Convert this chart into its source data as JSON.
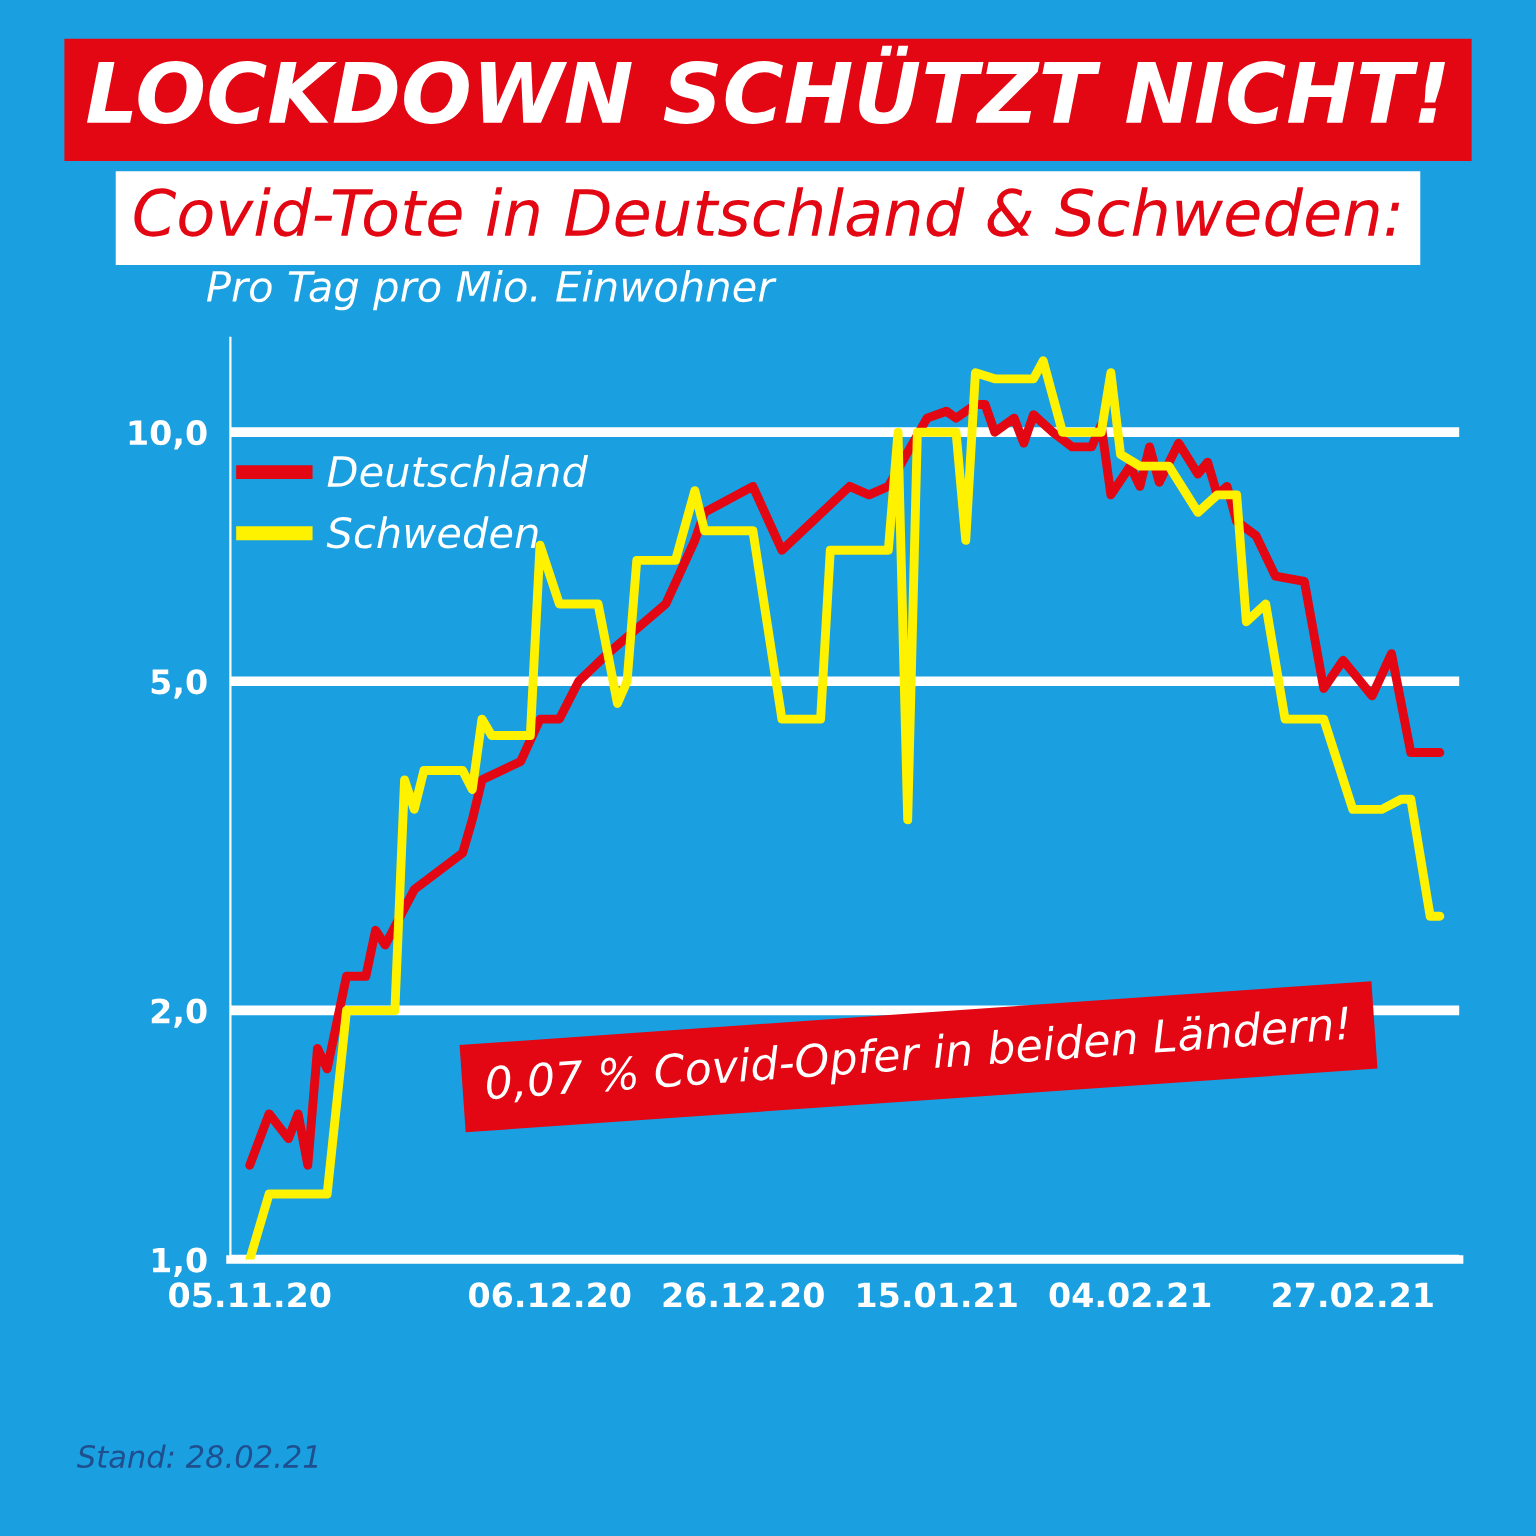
{
  "chart_data": {
    "type": "line",
    "title": "LOCKDOWN SCHÜTZT NICHT!",
    "subtitle": "Covid-Tote in Deutschland & Schweden:",
    "ylabel": "Pro Tag pro Mio. Einwohner",
    "annotations": [
      "0,07 % Covid-Opfer in beiden Ländern!",
      "Stand: 28.02.21"
    ],
    "xlim": [
      "2020-11-03",
      "2021-03-10"
    ],
    "xticks": [
      {
        "value": "2020-11-05",
        "label": "05.11.20"
      },
      {
        "value": "2020-12-06",
        "label": "06.12.20"
      },
      {
        "value": "2020-12-26",
        "label": "26.12.20"
      },
      {
        "value": "2021-01-15",
        "label": "15.01.21"
      },
      {
        "value": "2021-02-04",
        "label": "04.02.21"
      },
      {
        "value": "2021-02-27",
        "label": "27.02.21"
      }
    ],
    "ylim": [
      1,
      13
    ],
    "yticks": [
      {
        "value": 1,
        "label": "1,0"
      },
      {
        "value": 2,
        "label": "2,0"
      },
      {
        "value": 5,
        "label": "5,0"
      },
      {
        "value": 10,
        "label": "10,0"
      }
    ],
    "log": true,
    "grid": "y",
    "legend": "top left",
    "marker": "none",
    "line_style": "solid",
    "series": [
      {
        "name": "Deutschland",
        "color": "#e30613",
        "x": [
          "2020-11-05",
          "2020-11-07",
          "2020-11-09",
          "2020-11-10",
          "2020-11-11",
          "2020-11-12",
          "2020-11-13",
          "2020-11-15",
          "2020-11-17",
          "2020-11-18",
          "2020-11-19",
          "2020-11-22",
          "2020-11-27",
          "2020-11-28",
          "2020-11-29",
          "2020-12-03",
          "2020-12-05",
          "2020-12-07",
          "2020-12-09",
          "2020-12-12",
          "2020-12-18",
          "2020-12-21",
          "2020-12-22",
          "2020-12-27",
          "2020-12-30",
          "2021-01-06",
          "2021-01-08",
          "2021-01-10",
          "2021-01-14",
          "2021-01-16",
          "2021-01-17",
          "2021-01-19",
          "2021-01-20",
          "2021-01-21",
          "2021-01-23",
          "2021-01-24",
          "2021-01-25",
          "2021-01-27",
          "2021-01-29",
          "2021-01-31",
          "2021-02-01",
          "2021-02-02",
          "2021-02-04",
          "2021-02-05",
          "2021-02-06",
          "2021-02-07",
          "2021-02-09",
          "2021-02-11",
          "2021-02-12",
          "2021-02-13",
          "2021-02-14",
          "2021-02-15",
          "2021-02-17",
          "2021-02-19",
          "2021-02-22",
          "2021-02-24",
          "2021-02-26",
          "2021-03-01",
          "2021-03-03",
          "2021-03-05",
          "2021-03-08"
        ],
        "values": [
          1.3,
          1.5,
          1.4,
          1.5,
          1.3,
          1.8,
          1.7,
          2.2,
          2.2,
          2.5,
          2.4,
          2.8,
          3.1,
          3.4,
          3.8,
          4.0,
          4.5,
          4.5,
          5.0,
          5.4,
          6.2,
          7.4,
          8.0,
          8.6,
          7.2,
          8.6,
          8.4,
          8.6,
          10.4,
          10.6,
          10.4,
          10.8,
          10.8,
          10.0,
          10.4,
          9.7,
          10.5,
          10.0,
          9.6,
          9.6,
          10.2,
          8.4,
          9.1,
          8.6,
          9.6,
          8.7,
          9.7,
          8.9,
          9.2,
          8.4,
          8.6,
          7.8,
          7.5,
          6.7,
          6.6,
          4.9,
          5.3,
          4.8,
          5.4,
          4.1,
          4.1
        ]
      },
      {
        "name": "Schweden",
        "color": "#fff200",
        "x": [
          "2020-11-05",
          "2020-11-07",
          "2020-11-13",
          "2020-11-15",
          "2020-11-20",
          "2020-11-21",
          "2020-11-22",
          "2020-11-23",
          "2020-11-27",
          "2020-11-28",
          "2020-11-29",
          "2020-11-30",
          "2020-12-04",
          "2020-12-05",
          "2020-12-07",
          "2020-12-11",
          "2020-12-13",
          "2020-12-14",
          "2020-12-15",
          "2020-12-19",
          "2020-12-21",
          "2020-12-22",
          "2020-12-27",
          "2020-12-30",
          "2021-01-03",
          "2021-01-04",
          "2021-01-10",
          "2021-01-11",
          "2021-01-12",
          "2021-01-13",
          "2021-01-17",
          "2021-01-18",
          "2021-01-19",
          "2021-01-21",
          "2021-01-25",
          "2021-01-26",
          "2021-01-28",
          "2021-02-01",
          "2021-02-02",
          "2021-02-03",
          "2021-02-05",
          "2021-02-08",
          "2021-02-11",
          "2021-02-13",
          "2021-02-15",
          "2021-02-16",
          "2021-02-18",
          "2021-02-20",
          "2021-02-24",
          "2021-02-27",
          "2021-03-02",
          "2021-03-04",
          "2021-03-05",
          "2021-03-07",
          "2021-03-08"
        ],
        "values": [
          1.0,
          1.2,
          1.2,
          2.0,
          2.0,
          3.8,
          3.5,
          3.9,
          3.9,
          3.7,
          4.5,
          4.3,
          4.3,
          7.3,
          6.2,
          6.2,
          4.7,
          5.0,
          7.0,
          7.0,
          8.5,
          7.6,
          7.6,
          4.5,
          4.5,
          7.2,
          7.2,
          10.0,
          3.4,
          10.0,
          10.0,
          7.4,
          11.8,
          11.6,
          11.6,
          12.2,
          10.0,
          10.0,
          11.8,
          9.4,
          9.1,
          9.1,
          8.0,
          8.4,
          8.4,
          5.9,
          6.2,
          4.5,
          4.5,
          3.5,
          3.5,
          3.6,
          3.6,
          2.6,
          2.6
        ]
      }
    ]
  }
}
